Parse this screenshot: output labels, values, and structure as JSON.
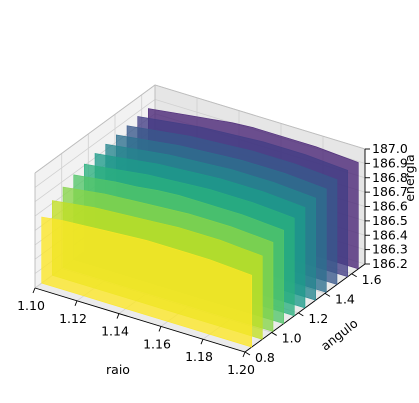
{
  "chart_data": {
    "type": "area",
    "projection": "3d",
    "title": "",
    "xlabel": "raio",
    "ylabel": "angulo",
    "zlabel": "energia",
    "xlim": [
      1.1,
      1.2
    ],
    "ylim": [
      0.8,
      1.7
    ],
    "zlim": [
      186.2,
      187.0
    ],
    "grid": true,
    "colormap": "viridis",
    "x_ticks": [
      "1.10",
      "1.12",
      "1.14",
      "1.16",
      "1.18",
      "1.20"
    ],
    "y_ticks": [
      "0.8",
      "1.0",
      "1.2",
      "1.4",
      "1.6"
    ],
    "z_ticks": [
      "186.2",
      "186.3",
      "186.4",
      "186.5",
      "186.6",
      "186.7",
      "186.8",
      "186.9",
      "187.0"
    ],
    "x": [
      1.1,
      1.11,
      1.12,
      1.13,
      1.14,
      1.15,
      1.16,
      1.17,
      1.18,
      1.19,
      1.2
    ],
    "series": [
      {
        "angulo": 0.85,
        "color": "#fde725",
        "values": [
          186.66,
          186.68,
          186.69,
          186.7,
          186.71,
          186.72,
          186.72,
          186.72,
          186.72,
          186.71,
          186.7
        ]
      },
      {
        "angulo": 0.93,
        "color": "#c2df23",
        "values": [
          186.72,
          186.74,
          186.76,
          186.77,
          186.78,
          186.79,
          186.8,
          186.8,
          186.8,
          186.79,
          186.78
        ]
      },
      {
        "angulo": 1.01,
        "color": "#86d549",
        "values": [
          186.76,
          186.78,
          186.8,
          186.81,
          186.82,
          186.83,
          186.84,
          186.84,
          186.84,
          186.83,
          186.82
        ]
      },
      {
        "angulo": 1.09,
        "color": "#52c569",
        "values": [
          186.79,
          186.81,
          186.83,
          186.84,
          186.86,
          186.87,
          186.87,
          186.87,
          186.87,
          186.86,
          186.85
        ]
      },
      {
        "angulo": 1.17,
        "color": "#2ab07f",
        "values": [
          186.81,
          186.83,
          186.85,
          186.87,
          186.88,
          186.89,
          186.9,
          186.9,
          186.9,
          186.89,
          186.88
        ]
      },
      {
        "angulo": 1.25,
        "color": "#1e9b8a",
        "values": [
          186.83,
          186.85,
          186.87,
          186.89,
          186.9,
          186.91,
          186.92,
          186.92,
          186.92,
          186.91,
          186.9
        ]
      },
      {
        "angulo": 1.33,
        "color": "#25858e",
        "values": [
          186.84,
          186.86,
          186.88,
          186.9,
          186.91,
          186.92,
          186.93,
          186.93,
          186.93,
          186.92,
          186.91
        ]
      },
      {
        "angulo": 1.41,
        "color": "#2d708e",
        "values": [
          186.85,
          186.87,
          186.89,
          186.91,
          186.92,
          186.93,
          186.94,
          186.94,
          186.94,
          186.93,
          186.92
        ]
      },
      {
        "angulo": 1.49,
        "color": "#38588c",
        "values": [
          186.86,
          186.88,
          186.9,
          186.92,
          186.93,
          186.94,
          186.95,
          186.95,
          186.95,
          186.94,
          186.93
        ]
      },
      {
        "angulo": 1.57,
        "color": "#433e85",
        "values": [
          186.87,
          186.89,
          186.91,
          186.93,
          186.94,
          186.95,
          186.96,
          186.96,
          186.96,
          186.95,
          186.94
        ]
      },
      {
        "angulo": 1.65,
        "color": "#482374",
        "values": [
          186.87,
          186.89,
          186.91,
          186.93,
          186.95,
          186.96,
          186.96,
          186.96,
          186.96,
          186.95,
          186.94
        ]
      }
    ]
  }
}
